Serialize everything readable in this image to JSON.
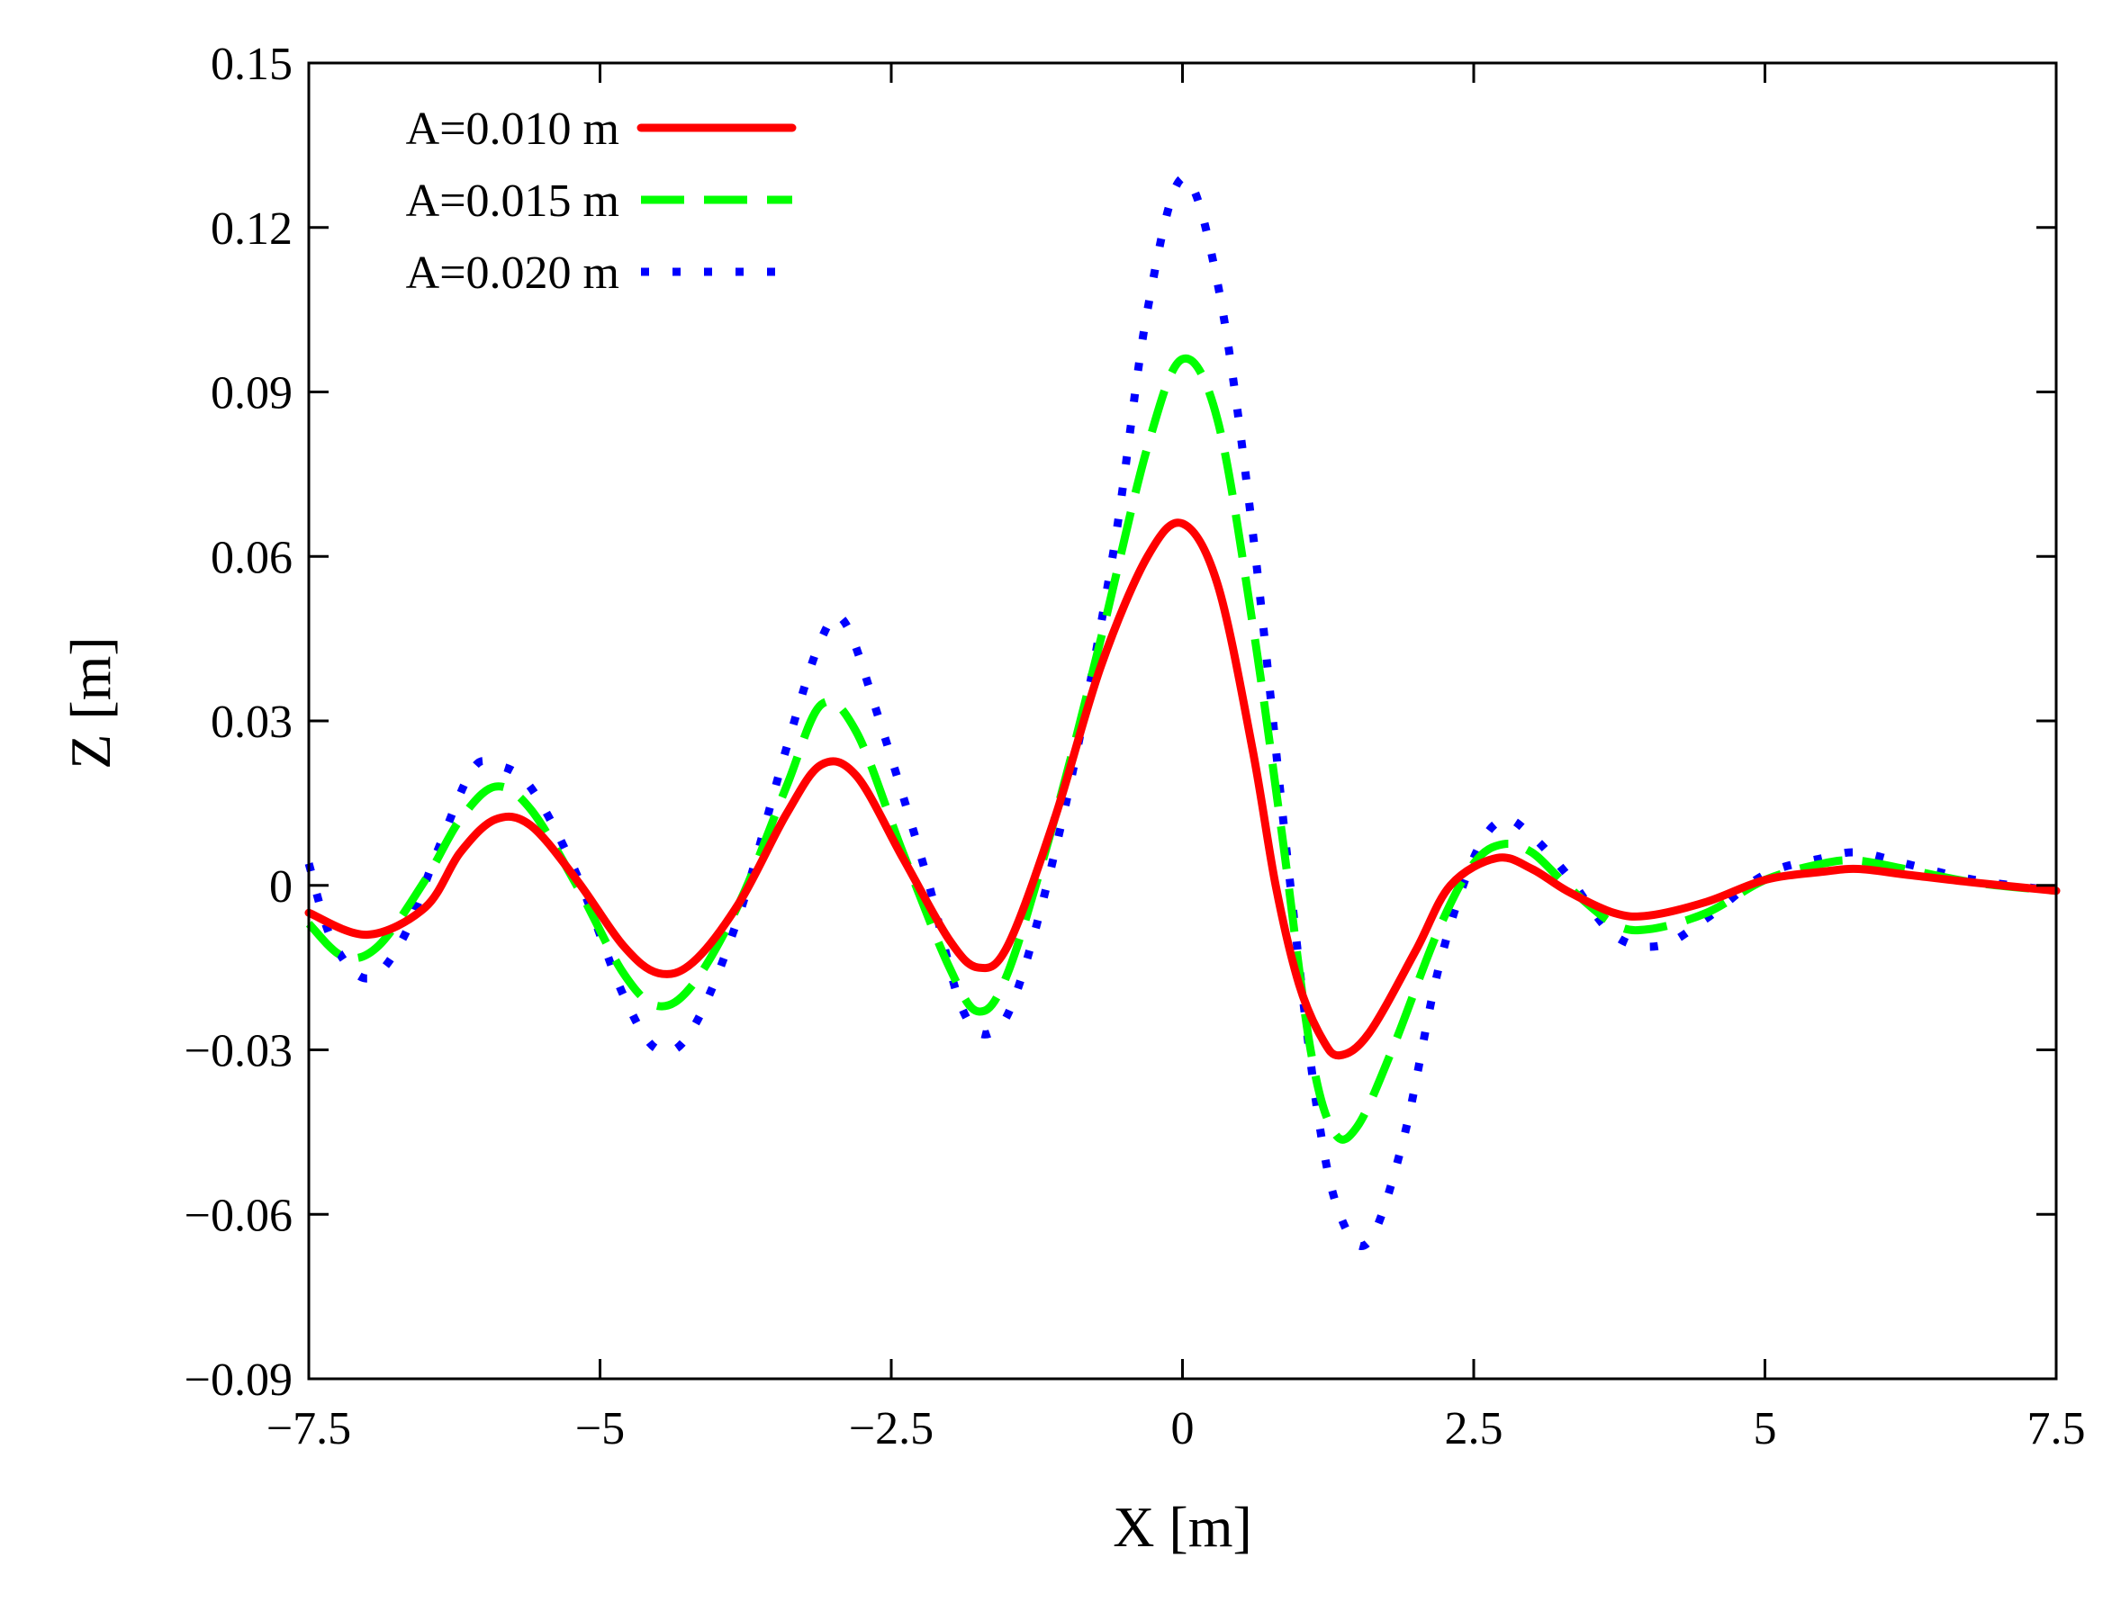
{
  "chart_data": {
    "type": "line",
    "title": "",
    "xlabel": "X [m]",
    "ylabel": "Z [m]",
    "xlim": [
      -7.5,
      7.5
    ],
    "ylim": [
      -0.09,
      0.15
    ],
    "xticks": [
      -7.5,
      -5,
      -2.5,
      0,
      2.5,
      5,
      7.5
    ],
    "xtick_labels": [
      "−7.5",
      "−5",
      "−2.5",
      "0",
      "2.5",
      "5",
      "7.5"
    ],
    "yticks": [
      -0.09,
      -0.06,
      -0.03,
      0,
      0.03,
      0.06,
      0.09,
      0.12,
      0.15
    ],
    "ytick_labels": [
      "−0.09",
      "−0.06",
      "−0.03",
      "0",
      "0.03",
      "0.06",
      "0.09",
      "0.12",
      "0.15"
    ],
    "grid": false,
    "legend_position": "top-left",
    "series": [
      {
        "name": "A=0.010 m",
        "color": "#ff0000",
        "style": "solid",
        "points": [
          [
            -7.5,
            -0.005
          ],
          [
            -7.0,
            -0.009
          ],
          [
            -6.5,
            -0.004
          ],
          [
            -6.2,
            0.006
          ],
          [
            -5.9,
            0.012
          ],
          [
            -5.6,
            0.011
          ],
          [
            -5.2,
            0.001
          ],
          [
            -4.8,
            -0.011
          ],
          [
            -4.5,
            -0.016
          ],
          [
            -4.2,
            -0.014
          ],
          [
            -3.8,
            -0.003
          ],
          [
            -3.4,
            0.013
          ],
          [
            -3.1,
            0.022
          ],
          [
            -2.8,
            0.02
          ],
          [
            -2.4,
            0.005
          ],
          [
            -2.0,
            -0.01
          ],
          [
            -1.75,
            -0.015
          ],
          [
            -1.5,
            -0.011
          ],
          [
            -1.1,
            0.012
          ],
          [
            -0.7,
            0.04
          ],
          [
            -0.3,
            0.06
          ],
          [
            0.0,
            0.066
          ],
          [
            0.3,
            0.055
          ],
          [
            0.6,
            0.025
          ],
          [
            0.8,
            0.0
          ],
          [
            1.0,
            -0.018
          ],
          [
            1.2,
            -0.028
          ],
          [
            1.35,
            -0.031
          ],
          [
            1.6,
            -0.027
          ],
          [
            2.0,
            -0.012
          ],
          [
            2.3,
            0.0
          ],
          [
            2.7,
            0.005
          ],
          [
            3.0,
            0.003
          ],
          [
            3.3,
            -0.001
          ],
          [
            3.7,
            -0.005
          ],
          [
            4.0,
            -0.0055
          ],
          [
            4.5,
            -0.003
          ],
          [
            5.0,
            0.001
          ],
          [
            5.5,
            0.0025
          ],
          [
            5.8,
            0.003
          ],
          [
            6.2,
            0.002
          ],
          [
            6.8,
            0.0005
          ],
          [
            7.5,
            -0.001
          ]
        ]
      },
      {
        "name": "A=0.015 m",
        "color": "#00ff00",
        "style": "dashed",
        "points": [
          [
            -7.5,
            -0.007
          ],
          [
            -7.2,
            -0.013
          ],
          [
            -6.9,
            -0.011
          ],
          [
            -6.5,
            0.001
          ],
          [
            -6.2,
            0.012
          ],
          [
            -5.9,
            0.018
          ],
          [
            -5.6,
            0.014
          ],
          [
            -5.2,
            0.0
          ],
          [
            -4.8,
            -0.016
          ],
          [
            -4.5,
            -0.022
          ],
          [
            -4.2,
            -0.018
          ],
          [
            -3.8,
            -0.003
          ],
          [
            -3.4,
            0.018
          ],
          [
            -3.1,
            0.033
          ],
          [
            -2.8,
            0.028
          ],
          [
            -2.4,
            0.006
          ],
          [
            -2.0,
            -0.015
          ],
          [
            -1.75,
            -0.023
          ],
          [
            -1.5,
            -0.016
          ],
          [
            -1.1,
            0.012
          ],
          [
            -0.7,
            0.045
          ],
          [
            -0.3,
            0.08
          ],
          [
            0.0,
            0.096
          ],
          [
            0.3,
            0.085
          ],
          [
            0.6,
            0.048
          ],
          [
            0.85,
            0.01
          ],
          [
            1.1,
            -0.03
          ],
          [
            1.3,
            -0.045
          ],
          [
            1.5,
            -0.044
          ],
          [
            1.8,
            -0.03
          ],
          [
            2.2,
            -0.008
          ],
          [
            2.5,
            0.004
          ],
          [
            2.75,
            0.0075
          ],
          [
            3.0,
            0.006
          ],
          [
            3.3,
            0.0
          ],
          [
            3.7,
            -0.007
          ],
          [
            4.0,
            -0.008
          ],
          [
            4.5,
            -0.005
          ],
          [
            5.0,
            0.001
          ],
          [
            5.5,
            0.004
          ],
          [
            5.8,
            0.0045
          ],
          [
            6.2,
            0.003
          ],
          [
            6.8,
            0.0005
          ],
          [
            7.5,
            -0.001
          ]
        ]
      },
      {
        "name": "A=0.020 m",
        "color": "#0000ff",
        "style": "dotted",
        "points": [
          [
            -7.5,
            0.004
          ],
          [
            -7.3,
            -0.01
          ],
          [
            -7.0,
            -0.017
          ],
          [
            -6.7,
            -0.01
          ],
          [
            -6.4,
            0.006
          ],
          [
            -6.1,
            0.021
          ],
          [
            -5.9,
            0.022
          ],
          [
            -5.6,
            0.018
          ],
          [
            -5.2,
            0.002
          ],
          [
            -4.8,
            -0.02
          ],
          [
            -4.5,
            -0.03
          ],
          [
            -4.2,
            -0.026
          ],
          [
            -3.8,
            -0.005
          ],
          [
            -3.4,
            0.025
          ],
          [
            -3.1,
            0.045
          ],
          [
            -2.9,
            0.048
          ],
          [
            -2.6,
            0.03
          ],
          [
            -2.2,
            0.002
          ],
          [
            -1.9,
            -0.022
          ],
          [
            -1.65,
            -0.027
          ],
          [
            -1.4,
            -0.018
          ],
          [
            -1.0,
            0.015
          ],
          [
            -0.6,
            0.06
          ],
          [
            -0.3,
            0.105
          ],
          [
            0.0,
            0.129
          ],
          [
            0.3,
            0.11
          ],
          [
            0.6,
            0.065
          ],
          [
            0.9,
            0.005
          ],
          [
            1.15,
            -0.04
          ],
          [
            1.35,
            -0.06
          ],
          [
            1.6,
            -0.065
          ],
          [
            1.9,
            -0.046
          ],
          [
            2.2,
            -0.015
          ],
          [
            2.5,
            0.005
          ],
          [
            2.75,
            0.012
          ],
          [
            3.0,
            0.009
          ],
          [
            3.3,
            0.002
          ],
          [
            3.7,
            -0.009
          ],
          [
            4.1,
            -0.011
          ],
          [
            4.5,
            -0.006
          ],
          [
            5.0,
            0.002
          ],
          [
            5.5,
            0.005
          ],
          [
            5.8,
            0.006
          ],
          [
            6.2,
            0.004
          ],
          [
            6.8,
            0.001
          ],
          [
            7.5,
            -0.001
          ]
        ]
      }
    ]
  }
}
